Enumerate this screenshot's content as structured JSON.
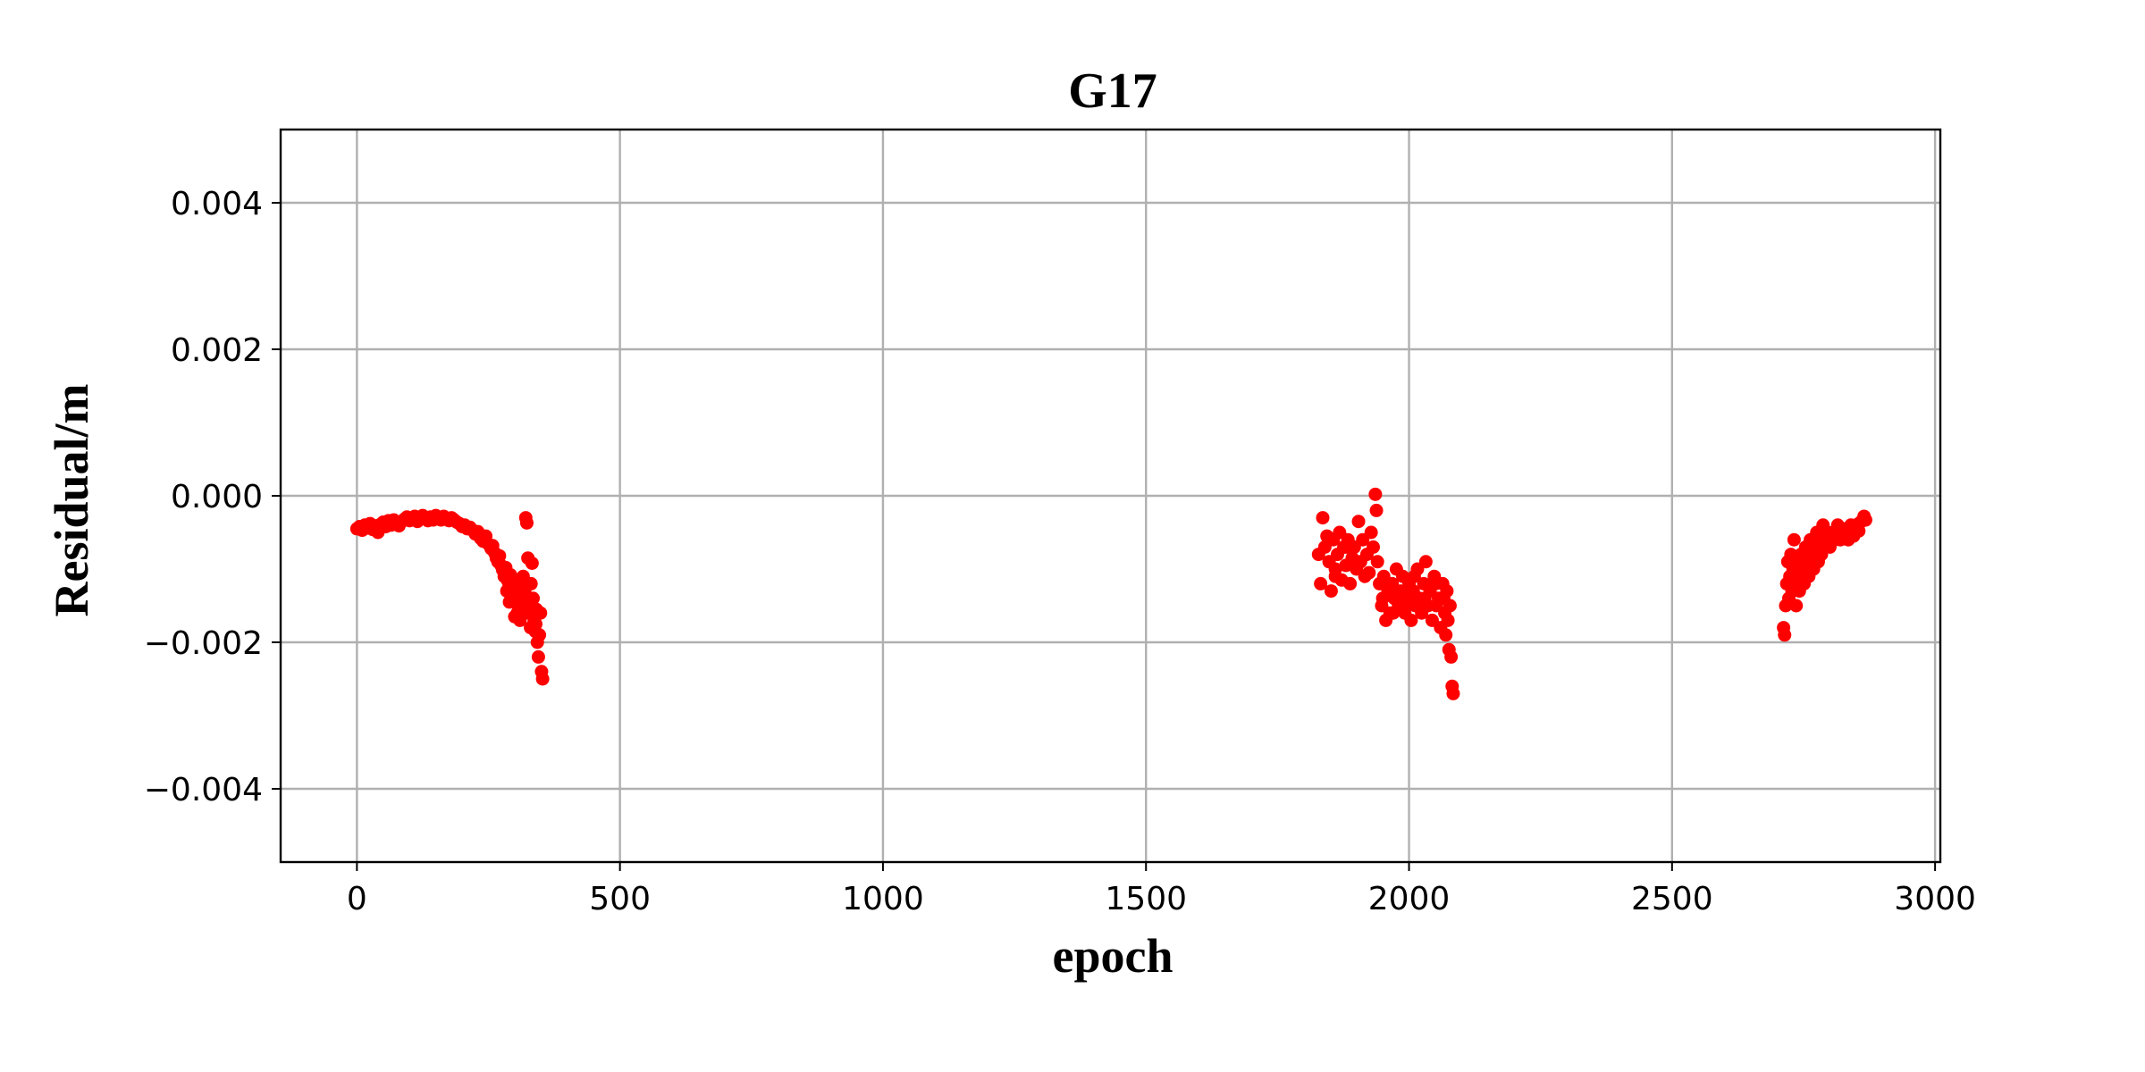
{
  "chart_data": {
    "type": "scatter",
    "title": "G17",
    "xlabel": "epoch",
    "ylabel": "Residual/m",
    "xlim": [
      -145,
      3010
    ],
    "ylim": [
      -0.005,
      0.005
    ],
    "xticks": [
      0,
      500,
      1000,
      1500,
      2000,
      2500,
      3000
    ],
    "xtick_labels": [
      "0",
      "500",
      "1000",
      "1500",
      "2000",
      "2500",
      "3000"
    ],
    "yticks": [
      0.004,
      0.002,
      0.0,
      -0.002,
      -0.004
    ],
    "ytick_labels": [
      "0.004",
      "0.002",
      "0.000",
      "−0.002",
      "−0.004"
    ],
    "grid": true,
    "marker_color": "#ff0000",
    "series": [
      {
        "points": [
          [
            0,
            -0.00045
          ],
          [
            5,
            -0.00042
          ],
          [
            10,
            -0.00047
          ],
          [
            15,
            -0.0004
          ],
          [
            20,
            -0.00044
          ],
          [
            25,
            -0.00038
          ],
          [
            30,
            -0.00046
          ],
          [
            35,
            -0.00041
          ],
          [
            40,
            -0.0005
          ],
          [
            45,
            -0.00039
          ],
          [
            50,
            -0.00036
          ],
          [
            55,
            -0.00042
          ],
          [
            60,
            -0.00034
          ],
          [
            65,
            -0.0004
          ],
          [
            70,
            -0.00033
          ],
          [
            75,
            -0.00038
          ],
          [
            80,
            -0.00041
          ],
          [
            85,
            -0.00035
          ],
          [
            90,
            -0.00032
          ],
          [
            95,
            -0.00029
          ],
          [
            100,
            -0.00034
          ],
          [
            105,
            -0.00031
          ],
          [
            110,
            -0.00028
          ],
          [
            115,
            -0.00035
          ],
          [
            120,
            -0.00032
          ],
          [
            125,
            -0.00027
          ],
          [
            130,
            -0.00031
          ],
          [
            135,
            -0.00034
          ],
          [
            140,
            -0.00029
          ],
          [
            145,
            -0.00033
          ],
          [
            150,
            -0.00027
          ],
          [
            155,
            -0.0003
          ],
          [
            160,
            -0.00033
          ],
          [
            165,
            -0.00028
          ],
          [
            170,
            -0.00031
          ],
          [
            175,
            -0.00034
          ],
          [
            180,
            -0.0003
          ],
          [
            185,
            -0.00033
          ],
          [
            190,
            -0.00036
          ],
          [
            195,
            -0.00038
          ],
          [
            200,
            -0.00042
          ],
          [
            205,
            -0.0004
          ],
          [
            210,
            -0.00045
          ],
          [
            215,
            -0.00043
          ],
          [
            220,
            -0.00047
          ],
          [
            225,
            -0.00052
          ],
          [
            230,
            -0.00049
          ],
          [
            235,
            -0.00058
          ],
          [
            240,
            -0.00062
          ],
          [
            245,
            -0.00055
          ],
          [
            250,
            -0.00066
          ],
          [
            255,
            -0.00072
          ],
          [
            258,
            -0.00068
          ],
          [
            262,
            -0.00078
          ],
          [
            265,
            -0.00085
          ],
          [
            268,
            -0.0009
          ],
          [
            271,
            -0.00082
          ],
          [
            274,
            -0.00095
          ],
          [
            277,
            -0.00101
          ],
          [
            280,
            -0.0011
          ],
          [
            283,
            -0.00098
          ],
          [
            286,
            -0.00115
          ],
          [
            289,
            -0.0012
          ],
          [
            292,
            -0.00108
          ],
          [
            295,
            -0.00128
          ],
          [
            298,
            -0.00135
          ],
          [
            301,
            -0.00118
          ],
          [
            304,
            -0.00142
          ],
          [
            307,
            -0.0015
          ],
          [
            310,
            -0.00125
          ],
          [
            313,
            -0.00155
          ],
          [
            316,
            -0.0011
          ],
          [
            319,
            -0.0013
          ],
          [
            321,
            -0.0003
          ],
          [
            323,
            -0.00037
          ],
          [
            325,
            -0.00085
          ],
          [
            327,
            -0.00145
          ],
          [
            329,
            -0.0016
          ],
          [
            331,
            -0.0012
          ],
          [
            333,
            -0.00092
          ],
          [
            335,
            -0.0014
          ],
          [
            337,
            -0.0017
          ],
          [
            339,
            -0.00185
          ],
          [
            341,
            -0.00155
          ],
          [
            343,
            -0.002
          ],
          [
            345,
            -0.0022
          ],
          [
            347,
            -0.0019
          ],
          [
            349,
            -0.0016
          ],
          [
            351,
            -0.0024
          ],
          [
            353,
            -0.0025
          ],
          [
            300,
            -0.00165
          ],
          [
            310,
            -0.0017
          ],
          [
            320,
            -0.0016
          ],
          [
            330,
            -0.0018
          ],
          [
            290,
            -0.00145
          ],
          [
            285,
            -0.0013
          ],
          [
            325,
            -0.0014
          ],
          [
            340,
            -0.00175
          ],
          [
            315,
            -0.00135
          ],
          [
            305,
            -0.0016
          ],
          [
            1828,
            -0.0008
          ],
          [
            1832,
            -0.0012
          ],
          [
            1836,
            -0.0003
          ],
          [
            1840,
            -0.0007
          ],
          [
            1844,
            -0.00055
          ],
          [
            1848,
            -0.0009
          ],
          [
            1852,
            -0.0013
          ],
          [
            1856,
            -0.0006
          ],
          [
            1860,
            -0.001
          ],
          [
            1864,
            -0.0008
          ],
          [
            1868,
            -0.0005
          ],
          [
            1872,
            -0.00115
          ],
          [
            1876,
            -0.0007
          ],
          [
            1880,
            -0.00095
          ],
          [
            1884,
            -0.0006
          ],
          [
            1888,
            -0.0012
          ],
          [
            1892,
            -0.00085
          ],
          [
            1896,
            -0.0007
          ],
          [
            1900,
            -0.001
          ],
          [
            1904,
            -0.00035
          ],
          [
            1908,
            -0.0009
          ],
          [
            1912,
            -0.0006
          ],
          [
            1916,
            -0.0011
          ],
          [
            1920,
            -0.0008
          ],
          [
            1924,
            -0.00105
          ],
          [
            1928,
            -0.0005
          ],
          [
            1932,
            -0.0007
          ],
          [
            1936,
            2e-05
          ],
          [
            1938,
            -0.0002
          ],
          [
            1940,
            -0.0009
          ],
          [
            1944,
            -0.0012
          ],
          [
            1948,
            -0.0015
          ],
          [
            1952,
            -0.0011
          ],
          [
            1956,
            -0.0017
          ],
          [
            1960,
            -0.0013
          ],
          [
            1964,
            -0.0016
          ],
          [
            1968,
            -0.0012
          ],
          [
            1972,
            -0.0014
          ],
          [
            1976,
            -0.001
          ],
          [
            1980,
            -0.0015
          ],
          [
            1984,
            -0.0013
          ],
          [
            1988,
            -0.0011
          ],
          [
            1992,
            -0.0016
          ],
          [
            1996,
            -0.0014
          ],
          [
            2000,
            -0.0012
          ],
          [
            2004,
            -0.0017
          ],
          [
            2008,
            -0.0013
          ],
          [
            2012,
            -0.0015
          ],
          [
            2016,
            -0.001
          ],
          [
            2020,
            -0.0014
          ],
          [
            2024,
            -0.0016
          ],
          [
            2028,
            -0.0012
          ],
          [
            2032,
            -0.0009
          ],
          [
            2036,
            -0.0015
          ],
          [
            2040,
            -0.0013
          ],
          [
            2044,
            -0.0017
          ],
          [
            2048,
            -0.0011
          ],
          [
            2052,
            -0.0015
          ],
          [
            2056,
            -0.0014
          ],
          [
            2060,
            -0.0018
          ],
          [
            2064,
            -0.0012
          ],
          [
            2068,
            -0.0016
          ],
          [
            2070,
            -0.0019
          ],
          [
            2072,
            -0.0013
          ],
          [
            2074,
            -0.0017
          ],
          [
            2076,
            -0.0021
          ],
          [
            2078,
            -0.0015
          ],
          [
            2080,
            -0.0022
          ],
          [
            2082,
            -0.0026
          ],
          [
            2084,
            -0.0027
          ],
          [
            1860,
            -0.0011
          ],
          [
            1880,
            -0.0007
          ],
          [
            1900,
            -0.0009
          ],
          [
            1990,
            -0.0015
          ],
          [
            2010,
            -0.0011
          ],
          [
            2030,
            -0.0014
          ],
          [
            2050,
            -0.0012
          ],
          [
            2066,
            -0.0014
          ],
          [
            1970,
            -0.0016
          ],
          [
            1950,
            -0.0014
          ],
          [
            2712,
            -0.0018
          ],
          [
            2714,
            -0.0019
          ],
          [
            2716,
            -0.0015
          ],
          [
            2718,
            -0.0012
          ],
          [
            2720,
            -0.0009
          ],
          [
            2722,
            -0.0014
          ],
          [
            2724,
            -0.0011
          ],
          [
            2726,
            -0.0008
          ],
          [
            2728,
            -0.0013
          ],
          [
            2730,
            -0.001
          ],
          [
            2732,
            -0.0006
          ],
          [
            2734,
            -0.0012
          ],
          [
            2736,
            -0.0015
          ],
          [
            2738,
            -0.0009
          ],
          [
            2740,
            -0.0011
          ],
          [
            2742,
            -0.0013
          ],
          [
            2745,
            -0.0008
          ],
          [
            2748,
            -0.001
          ],
          [
            2751,
            -0.0012
          ],
          [
            2754,
            -0.0007
          ],
          [
            2757,
            -0.0009
          ],
          [
            2760,
            -0.0011
          ],
          [
            2763,
            -0.0006
          ],
          [
            2766,
            -0.0008
          ],
          [
            2769,
            -0.001
          ],
          [
            2772,
            -0.0007
          ],
          [
            2775,
            -0.0005
          ],
          [
            2778,
            -0.0009
          ],
          [
            2781,
            -0.0006
          ],
          [
            2784,
            -0.0008
          ],
          [
            2787,
            -0.0004
          ],
          [
            2790,
            -0.0007
          ],
          [
            2793,
            -0.0006
          ],
          [
            2796,
            -0.0005
          ],
          [
            2800,
            -0.0007
          ],
          [
            2805,
            -0.0005
          ],
          [
            2810,
            -0.0006
          ],
          [
            2815,
            -0.0004
          ],
          [
            2820,
            -0.0006
          ],
          [
            2825,
            -0.0005
          ],
          [
            2830,
            -0.00045
          ],
          [
            2835,
            -0.0006
          ],
          [
            2840,
            -0.0004
          ],
          [
            2845,
            -0.00055
          ],
          [
            2850,
            -0.0004
          ],
          [
            2855,
            -0.00048
          ],
          [
            2860,
            -0.00035
          ],
          [
            2865,
            -0.00028
          ],
          [
            2868,
            -0.00033
          ],
          [
            2855,
            -0.00038
          ]
        ]
      }
    ]
  }
}
